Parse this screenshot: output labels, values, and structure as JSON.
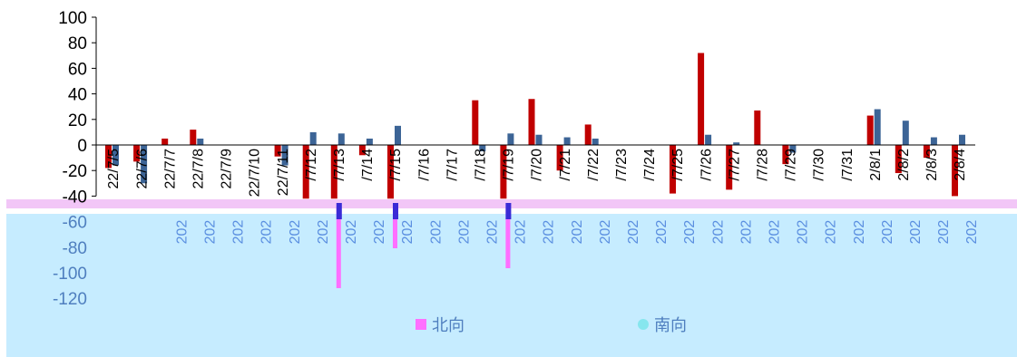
{
  "colors": {
    "north": "#c00000",
    "south": "#3c6496",
    "overlay_bg": "#c6ecff",
    "overlay_strip": "#f2c6f7",
    "legend_north": "#ff6fff",
    "legend_south": "#86e6ee",
    "legend_text": "#4f7fbf"
  },
  "legend": [
    {
      "name": "北向",
      "icon": "square-icon"
    },
    {
      "name": "南向",
      "icon": "circle-icon"
    }
  ],
  "overlay_year_label": "202",
  "chart_data": {
    "type": "bar",
    "title": "",
    "xlabel": "",
    "ylabel": "",
    "ylim": [
      -120,
      100
    ],
    "yticks": [
      100,
      80,
      60,
      40,
      20,
      0,
      -20,
      -40,
      -60,
      -80,
      -100,
      -120
    ],
    "categories": [
      "22/7/5",
      "22/7/6",
      "22/7/7",
      "22/7/8",
      "22/7/9",
      "22/7/10",
      "22/7/11",
      "22/7/12",
      "22/7/13",
      "22/7/14",
      "22/7/15",
      "22/7/16",
      "22/7/17",
      "22/7/18",
      "22/7/19",
      "22/7/20",
      "22/7/21",
      "22/7/22",
      "22/7/23",
      "22/7/24",
      "22/7/25",
      "22/7/26",
      "22/7/27",
      "22/7/28",
      "22/7/29",
      "22/7/30",
      "22/7/31",
      "22/8/1",
      "22/8/2",
      "22/8/3",
      "22/8/4"
    ],
    "category_labels": [
      "22/7/5",
      "22/7/6",
      "22/7/7",
      "22/7/8",
      "22/7/9",
      "22/7/10",
      "22/7/11",
      "/7/12",
      "/7/13",
      "/7/14",
      "/7/15",
      "/7/16",
      "/7/17",
      "/7/18",
      "/7/19",
      "/7/20",
      "/7/21",
      "/7/22",
      "/7/23",
      "/7/24",
      "/7/25",
      "/7/26",
      "/7/27",
      "/7/28",
      "/7/29",
      "/7/30",
      "/7/31",
      "2/8/1",
      "2/8/2",
      "2/8/3",
      "2/8/4"
    ],
    "series": [
      {
        "name": "北向",
        "values": [
          -18,
          -13,
          5,
          12,
          0,
          0,
          -9,
          -42,
          -42,
          -8,
          -42,
          0,
          0,
          35,
          -42,
          36,
          -20,
          16,
          0,
          0,
          -38,
          72,
          -35,
          27,
          -15,
          0,
          0,
          23,
          -22,
          -10,
          -40
        ]
      },
      {
        "name": "南向",
        "values": [
          -16,
          -30,
          0,
          5,
          0,
          0,
          -16,
          10,
          9,
          5,
          15,
          0,
          0,
          -5,
          9,
          8,
          6,
          5,
          0,
          0,
          0,
          8,
          2,
          0,
          -6,
          0,
          0,
          28,
          19,
          6,
          8
        ]
      }
    ]
  }
}
